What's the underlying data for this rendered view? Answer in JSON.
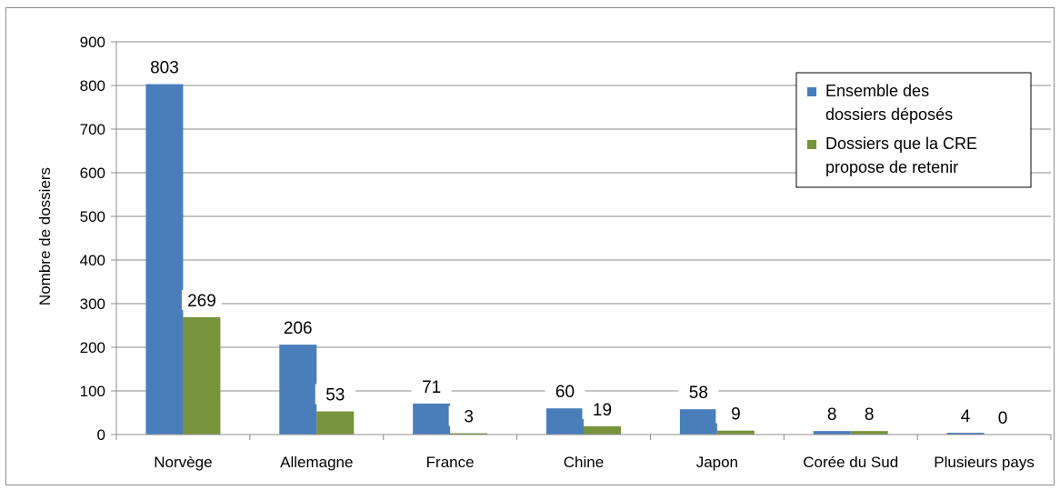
{
  "chart_data": {
    "type": "bar",
    "title": "",
    "xlabel": "",
    "ylabel": "Nombre de dossiers",
    "ylim": [
      0,
      900
    ],
    "yticks": [
      0,
      100,
      200,
      300,
      400,
      500,
      600,
      700,
      800,
      900
    ],
    "grid": "horizontal",
    "legend_position": "top-right",
    "categories": [
      "Norvège",
      "Allemagne",
      "France",
      "Chine",
      "Japon",
      "Corée du Sud",
      "Plusieurs pays"
    ],
    "series": [
      {
        "name": "Ensemble des dossiers déposés",
        "name_lines": [
          "Ensemble des",
          "dossiers déposés"
        ],
        "color": "#4a7ebb",
        "values": [
          803,
          206,
          71,
          60,
          58,
          8,
          4
        ]
      },
      {
        "name": "Dossiers que la CRE propose de retenir",
        "name_lines": [
          "Dossiers que la CRE",
          "propose de retenir"
        ],
        "color": "#77933c",
        "values": [
          269,
          53,
          3,
          19,
          9,
          8,
          0
        ]
      }
    ]
  }
}
